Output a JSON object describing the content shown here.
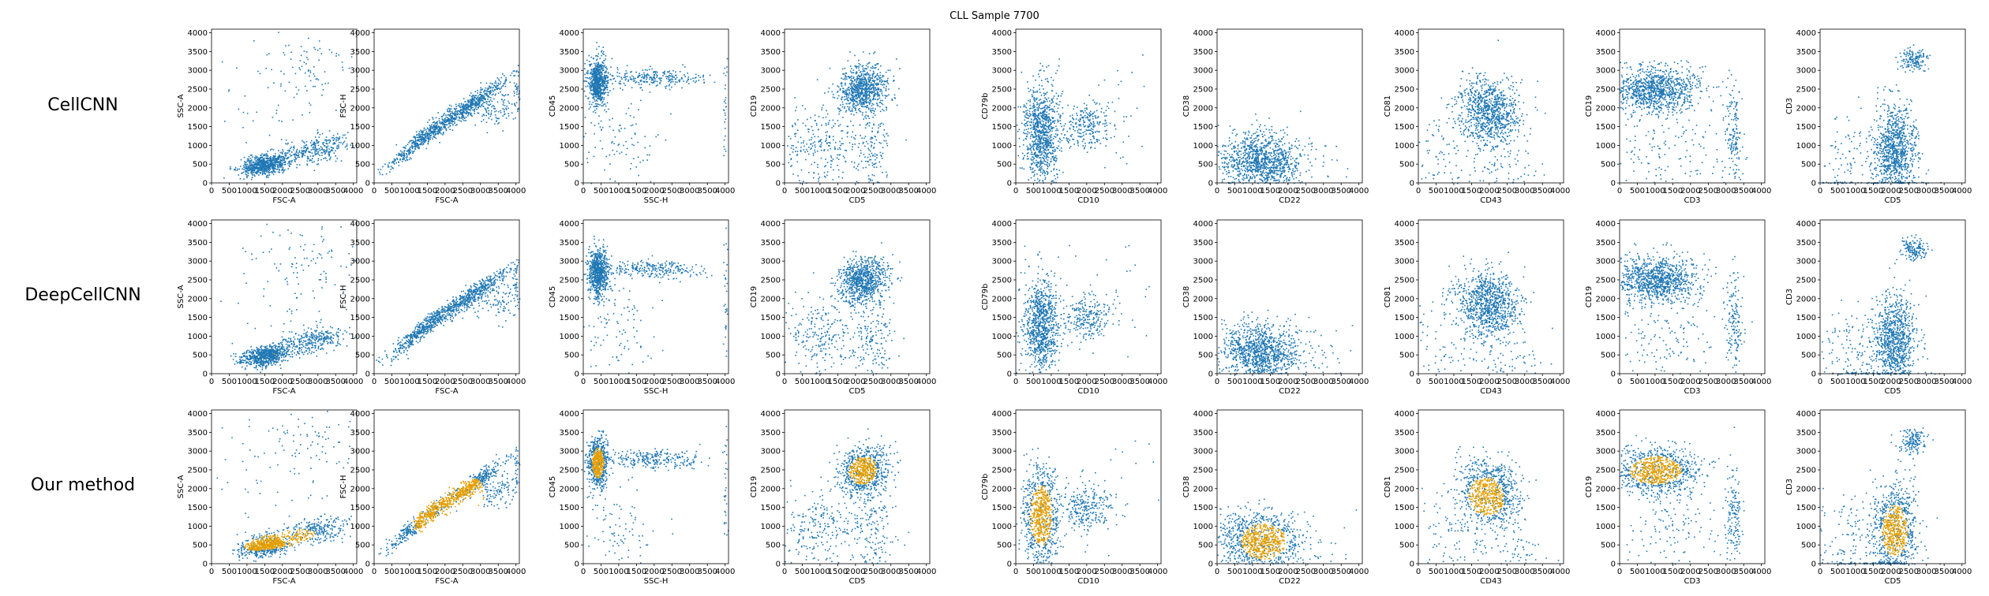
{
  "figure": {
    "title": "CLL Sample 7700",
    "row_labels": [
      "CellCNN",
      "DeepCellCNN",
      "Our method"
    ]
  },
  "colors": {
    "background_cells": "#1f77b4",
    "selected_cells": "#e69f00"
  },
  "chart_data": {
    "type": "scatter",
    "title": "CLL Sample 7700",
    "xlim": [
      0,
      4096
    ],
    "ylim": [
      0,
      4096
    ],
    "ticks": [
      0,
      500,
      1000,
      1500,
      2000,
      2500,
      3000,
      3500,
      4000
    ],
    "tick_labels": [
      "0",
      "500",
      "1000",
      "1500",
      "2000",
      "2500",
      "3000",
      "3500",
      "4000"
    ],
    "grid": false,
    "rows": [
      "CellCNN",
      "DeepCellCNN",
      "Our method"
    ],
    "panels": [
      {
        "xlabel": "FSC-A",
        "ylabel": "SSC-A",
        "clusters": [
          {
            "cx": 1500,
            "cy": 500,
            "sx": 350,
            "sy": 130,
            "n": 700,
            "rot": 0.18
          },
          {
            "cx": 2900,
            "cy": 900,
            "sx": 500,
            "sy": 170,
            "n": 300,
            "rot": 0.18
          },
          {
            "cx": 2600,
            "cy": 3200,
            "sx": 900,
            "sy": 500,
            "n": 80,
            "rot": 0
          },
          {
            "cx": 2000,
            "cy": 2000,
            "sx": 1200,
            "sy": 900,
            "n": 50,
            "rot": 0
          }
        ],
        "gate": {
          "cx": 1900,
          "cy": 650,
          "sx": 800,
          "sy": 170,
          "rot": 0.18
        }
      },
      {
        "xlabel": "FSC-A",
        "ylabel": "FSC-H",
        "clusters": [
          {
            "cx": 1400,
            "cy": 1000,
            "sx": 500,
            "sy": 300,
            "n": 500,
            "rot": 0,
            "band": [
              480,
              0.75,
              0
            ]
          },
          {
            "cx": 2700,
            "cy": 1900,
            "sx": 500,
            "sy": 300,
            "n": 500,
            "rot": 0,
            "band": [
              500,
              0.68,
              0
            ]
          },
          {
            "cx": 3500,
            "cy": 2000,
            "sx": 400,
            "sy": 250,
            "n": 120,
            "rot": 0
          },
          {
            "cx": 4000,
            "cy": 2500,
            "sx": 40,
            "sy": 300,
            "n": 30,
            "rot": 0
          }
        ],
        "gate": {
          "cx": 2100,
          "cy": 1500,
          "sx": 900,
          "sy": 500,
          "rot": 0.6
        }
      },
      {
        "xlabel": "SSC-H",
        "ylabel": "CD45",
        "clusters": [
          {
            "cx": 400,
            "cy": 2700,
            "sx": 140,
            "sy": 300,
            "n": 700,
            "rot": 0
          },
          {
            "cx": 2000,
            "cy": 2800,
            "sx": 700,
            "sy": 120,
            "n": 250,
            "rot": 0
          },
          {
            "cx": 900,
            "cy": 1200,
            "sx": 600,
            "sy": 700,
            "n": 100,
            "rot": 0
          },
          {
            "cx": 4000,
            "cy": 2000,
            "sx": 30,
            "sy": 1000,
            "n": 30,
            "rot": 0
          }
        ],
        "gate": {
          "cx": 400,
          "cy": 2700,
          "sx": 130,
          "sy": 320,
          "rot": 0
        }
      },
      {
        "xlabel": "CD5",
        "ylabel": "CD19",
        "clusters": [
          {
            "cx": 2200,
            "cy": 2500,
            "sx": 350,
            "sy": 300,
            "n": 800,
            "rot": 0.5
          },
          {
            "cx": 1000,
            "cy": 1000,
            "sx": 600,
            "sy": 500,
            "n": 250,
            "rot": 0
          },
          {
            "cx": 2500,
            "cy": 900,
            "sx": 300,
            "sy": 600,
            "n": 150,
            "rot": 0
          }
        ],
        "gate": {
          "cx": 2200,
          "cy": 2500,
          "sx": 320,
          "sy": 280,
          "rot": 0.5
        }
      },
      {
        "xlabel": "CD10",
        "ylabel": "CD79b",
        "clusters": [
          {
            "cx": 700,
            "cy": 1300,
            "sx": 250,
            "sy": 650,
            "n": 900,
            "rot": 0
          },
          {
            "cx": 2000,
            "cy": 1500,
            "sx": 350,
            "sy": 300,
            "n": 250,
            "rot": 0
          },
          {
            "cx": 2800,
            "cy": 1800,
            "sx": 700,
            "sy": 900,
            "n": 30,
            "rot": 0
          }
        ],
        "gate": {
          "cx": 700,
          "cy": 1300,
          "sx": 240,
          "sy": 640,
          "rot": 0
        }
      },
      {
        "xlabel": "CD22",
        "ylabel": "CD38",
        "clusters": [
          {
            "cx": 1200,
            "cy": 600,
            "sx": 550,
            "sy": 380,
            "n": 1100,
            "rot": 0
          },
          {
            "cx": 2600,
            "cy": 300,
            "sx": 600,
            "sy": 500,
            "n": 40,
            "rot": 0
          }
        ],
        "gate": {
          "cx": 1300,
          "cy": 600,
          "sx": 500,
          "sy": 380,
          "rot": 0
        }
      },
      {
        "xlabel": "CD43",
        "ylabel": "CD81",
        "clusters": [
          {
            "cx": 2000,
            "cy": 1900,
            "sx": 400,
            "sy": 450,
            "n": 900,
            "rot": 0.6
          },
          {
            "cx": 1200,
            "cy": 800,
            "sx": 800,
            "sy": 800,
            "n": 150,
            "rot": 0
          },
          {
            "cx": 2800,
            "cy": 300,
            "sx": 400,
            "sy": 300,
            "n": 40,
            "rot": 0
          }
        ],
        "gate": {
          "cx": 1900,
          "cy": 1800,
          "sx": 380,
          "sy": 420,
          "rot": 0.6
        }
      },
      {
        "xlabel": "CD3",
        "ylabel": "CD19",
        "clusters": [
          {
            "cx": 1000,
            "cy": 2500,
            "sx": 600,
            "sy": 300,
            "n": 1000,
            "rot": 0
          },
          {
            "cx": 3200,
            "cy": 1300,
            "sx": 120,
            "sy": 700,
            "n": 150,
            "rot": 0
          },
          {
            "cx": 1300,
            "cy": 900,
            "sx": 900,
            "sy": 600,
            "n": 150,
            "rot": 0
          }
        ],
        "gate": {
          "cx": 1000,
          "cy": 2500,
          "sx": 580,
          "sy": 300,
          "rot": 0
        }
      },
      {
        "xlabel": "CD5",
        "ylabel": "CD3",
        "clusters": [
          {
            "cx": 2100,
            "cy": 900,
            "sx": 300,
            "sy": 600,
            "n": 900,
            "rot": 0
          },
          {
            "cx": 2600,
            "cy": 3300,
            "sx": 180,
            "sy": 160,
            "n": 150,
            "rot": 0
          },
          {
            "cx": 1000,
            "cy": 700,
            "sx": 700,
            "sy": 600,
            "n": 150,
            "rot": 0
          },
          {
            "cx": 1500,
            "cy": 20,
            "sx": 800,
            "sy": 15,
            "n": 80,
            "rot": 0
          }
        ],
        "gate": {
          "cx": 2100,
          "cy": 900,
          "sx": 280,
          "sy": 550,
          "rot": 0
        }
      }
    ],
    "selected_fraction": [
      0,
      0.004,
      0.55
    ],
    "series": [
      {
        "name": "",
        "color": "#1f77b4",
        "role": "all cells"
      },
      {
        "name": "",
        "color": "#e69f00",
        "role": "cells selected by the method (only in the Our method row)"
      }
    ]
  }
}
